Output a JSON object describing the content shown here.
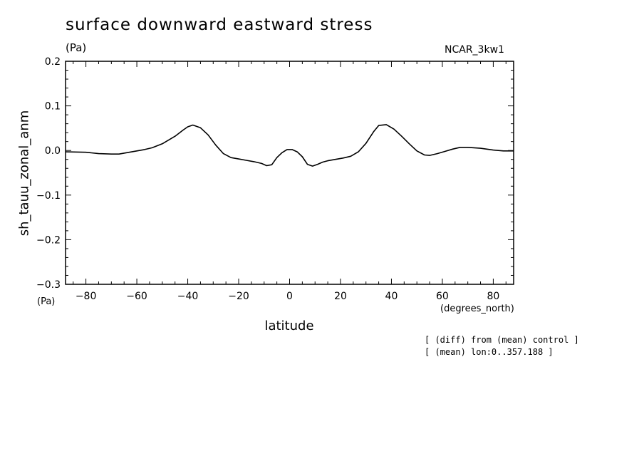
{
  "chart_data": {
    "type": "line",
    "title": "surface downward eastward stress",
    "title_units": "(Pa)",
    "model_label": "NCAR_3kw1",
    "ylabel": "sh_tauu_zonal_anm",
    "ylabel_units": "(Pa)",
    "xlabel": "latitude",
    "xlabel_units": "(degrees_north)",
    "xlim": [
      -88,
      88
    ],
    "ylim": [
      -0.3,
      0.2
    ],
    "xticks": [
      -80,
      -60,
      -40,
      -20,
      0,
      20,
      40,
      60,
      80
    ],
    "xtick_labels": [
      "−80",
      "−60",
      "−40",
      "−20",
      "0",
      "20",
      "40",
      "60",
      "80"
    ],
    "yticks": [
      -0.3,
      -0.2,
      -0.1,
      0.0,
      0.1,
      0.2
    ],
    "ytick_labels": [
      "−0.3",
      "−0.2",
      "−0.1",
      "0.0",
      "0.1",
      "0.2"
    ],
    "grid": false,
    "series": [
      {
        "x": [
          -88,
          -80,
          -75,
          -70,
          -67,
          -64,
          -60,
          -57,
          -54,
          -50,
          -45,
          -42,
          -40,
          -38,
          -35,
          -32,
          -29,
          -26,
          -23,
          -20,
          -17,
          -14,
          -11,
          -9,
          -7,
          -5,
          -3,
          -1,
          0,
          1,
          3,
          5,
          7,
          9,
          11,
          13,
          15,
          18,
          21,
          24,
          27,
          30,
          33,
          35,
          38,
          41,
          44,
          47,
          50,
          53,
          55,
          58,
          61,
          64,
          67,
          70,
          75,
          80,
          84,
          88
        ],
        "y": [
          -0.003,
          -0.004,
          -0.007,
          -0.008,
          -0.008,
          -0.005,
          -0.001,
          0.002,
          0.006,
          0.015,
          0.032,
          0.045,
          0.053,
          0.057,
          0.051,
          0.035,
          0.012,
          -0.007,
          -0.016,
          -0.019,
          -0.022,
          -0.025,
          -0.029,
          -0.034,
          -0.032,
          -0.016,
          -0.005,
          0.002,
          0.002,
          0.002,
          -0.003,
          -0.014,
          -0.031,
          -0.035,
          -0.031,
          -0.026,
          -0.023,
          -0.02,
          -0.017,
          -0.013,
          -0.003,
          0.016,
          0.042,
          0.056,
          0.058,
          0.048,
          0.032,
          0.015,
          -0.001,
          -0.01,
          -0.011,
          -0.007,
          -0.002,
          0.003,
          0.007,
          0.007,
          0.005,
          0.001,
          -0.001,
          -0.001
        ]
      }
    ]
  },
  "annotations": {
    "note1": "[ (diff) from (mean) control ]",
    "note2": "[ (mean) lon:0..357.188 ]"
  }
}
